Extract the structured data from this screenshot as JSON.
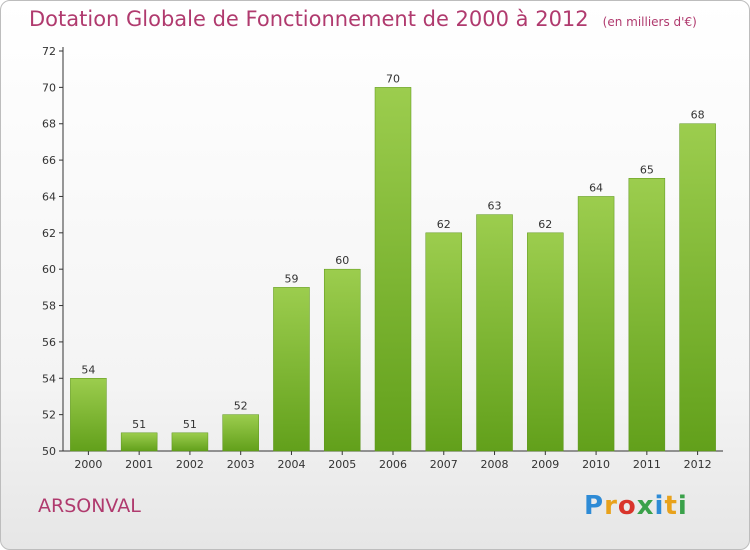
{
  "header": {
    "title": "Dotation Globale de Fonctionnement de 2000 à 2012",
    "unit": "(en milliers d'€)"
  },
  "footer": {
    "place": "ARSONVAL",
    "logo": "Proxiti",
    "logo_colors": [
      "#2e8bd6",
      "#e8a21c",
      "#d9342b",
      "#3aa14a",
      "#2e8bd6",
      "#e8a21c",
      "#3aa14a"
    ]
  },
  "chart_data": {
    "type": "bar",
    "title": "Dotation Globale de Fonctionnement de 2000 à 2012",
    "categories": [
      "2000",
      "2001",
      "2002",
      "2003",
      "2004",
      "2005",
      "2006",
      "2007",
      "2008",
      "2009",
      "2010",
      "2011",
      "2012"
    ],
    "values": [
      54,
      51,
      51,
      52,
      59,
      60,
      70,
      62,
      63,
      62,
      64,
      65,
      68
    ],
    "ylim": [
      50,
      72
    ],
    "yticks": [
      50,
      52,
      54,
      56,
      58,
      60,
      62,
      64,
      66,
      68,
      70,
      72
    ],
    "grid": false,
    "bar_color_top": "#9ccd4e",
    "bar_color_bottom": "#62a01b"
  }
}
